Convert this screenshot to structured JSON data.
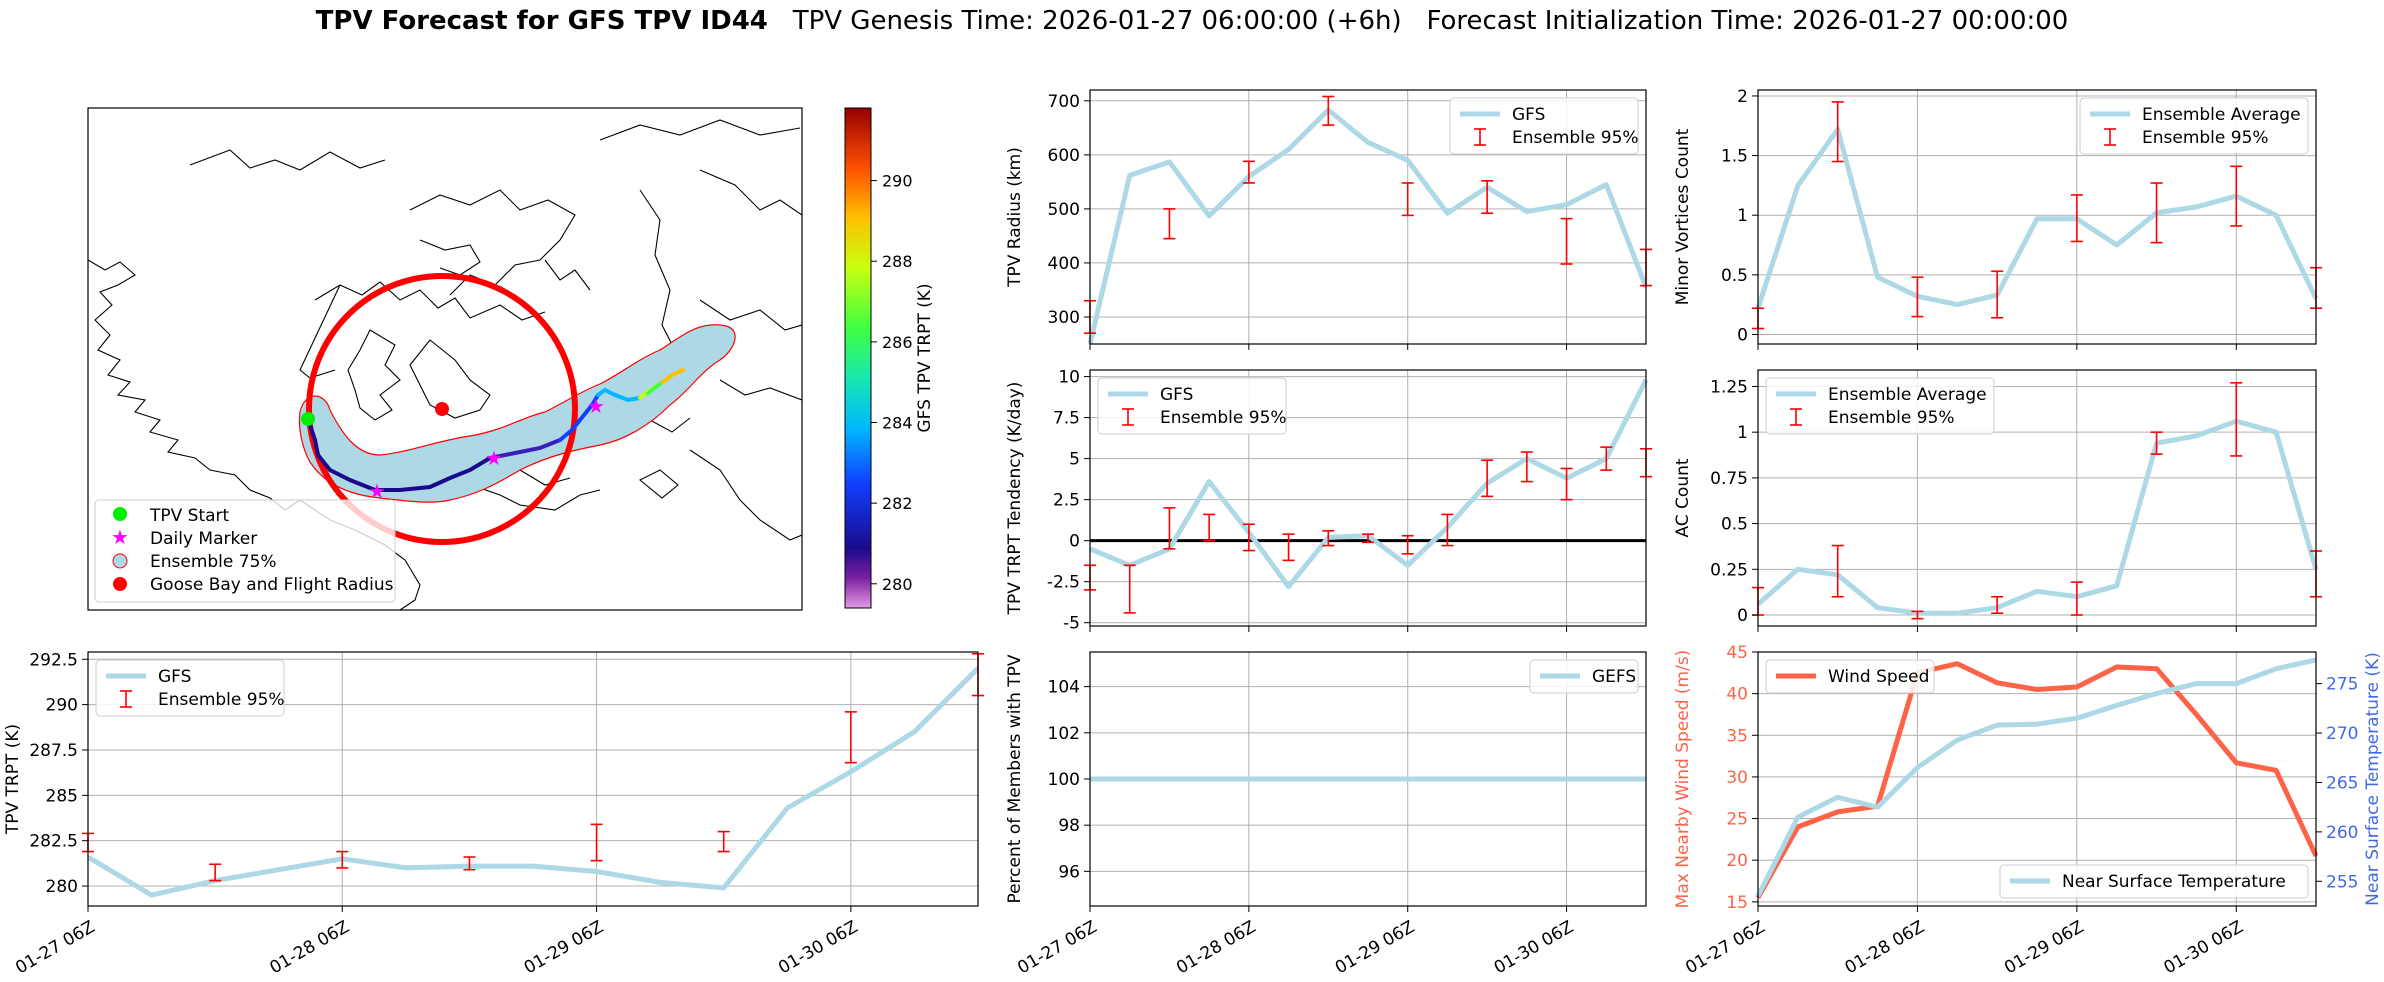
{
  "header": {
    "title_bold": "TPV Forecast for GFS TPV ID44",
    "title_genesis": "TPV Genesis Time: 2026-01-27 06:00:00 (+6h)",
    "title_init": "Forecast Initialization Time: 2026-01-27 00:00:00"
  },
  "colors": {
    "ensemble_line": "#add8e6",
    "errorbar": "#ff0000",
    "wind": "#ff6347",
    "temp_axis": "#4169e1",
    "radius_circle": "#ff0000"
  },
  "time_ticks": [
    "01-27 06Z",
    "01-28 06Z",
    "01-29 06Z",
    "01-30 06Z"
  ],
  "map": {
    "legend": [
      "TPV Start",
      "Daily Marker",
      "Ensemble 75%",
      "Goose Bay and Flight Radius"
    ],
    "colorbar_label": "GFS TPV TRPT (K)",
    "colorbar_ticks": [
      "280",
      "282",
      "284",
      "286",
      "288",
      "290"
    ],
    "colorbar_range": [
      279.4,
      291.8
    ]
  },
  "chart_data": [
    {
      "id": "radius",
      "type": "line",
      "ylabel": "TPV Radius (km)",
      "ylim": [
        250,
        720
      ],
      "yticks": [
        300,
        400,
        500,
        600,
        700
      ],
      "series": [
        {
          "name": "GFS",
          "values": [
            250,
            562,
            587,
            487,
            560,
            610,
            683,
            623,
            590,
            492,
            540,
            495,
            508,
            545,
            355
          ]
        }
      ],
      "errorbars": {
        "name": "Ensemble 95%",
        "items": [
          {
            "x": 0,
            "lo": 270,
            "hi": 330
          },
          {
            "x": 2,
            "lo": 445,
            "hi": 500
          },
          {
            "x": 4,
            "lo": 548,
            "hi": 588
          },
          {
            "x": 6,
            "lo": 655,
            "hi": 708
          },
          {
            "x": 8,
            "lo": 488,
            "hi": 548
          },
          {
            "x": 10,
            "lo": 492,
            "hi": 552
          },
          {
            "x": 12,
            "lo": 398,
            "hi": 482
          },
          {
            "x": 14,
            "lo": 358,
            "hi": 425
          }
        ]
      }
    },
    {
      "id": "tendency",
      "type": "line",
      "ylabel": "TPV TRPT Tendency (K/day)",
      "ylim": [
        -5.2,
        10.4
      ],
      "yticks": [
        -5.0,
        -2.5,
        0.0,
        2.5,
        5.0,
        7.5,
        10.0
      ],
      "hline": 0,
      "series": [
        {
          "name": "GFS",
          "values": [
            -0.5,
            -1.5,
            -0.5,
            3.6,
            0.5,
            -2.8,
            0.2,
            0.3,
            -1.5,
            0.8,
            3.5,
            5.0,
            3.8,
            5.0,
            9.8
          ]
        }
      ],
      "errorbars": {
        "name": "Ensemble 95%",
        "items": [
          {
            "x": 0,
            "lo": -3.0,
            "hi": -1.5
          },
          {
            "x": 1,
            "lo": -4.4,
            "hi": -1.5
          },
          {
            "x": 2,
            "lo": -0.5,
            "hi": 2.0
          },
          {
            "x": 3,
            "lo": 0.0,
            "hi": 1.6
          },
          {
            "x": 4,
            "lo": -0.6,
            "hi": 1.0
          },
          {
            "x": 5,
            "lo": -1.2,
            "hi": 0.4
          },
          {
            "x": 6,
            "lo": -0.3,
            "hi": 0.6
          },
          {
            "x": 7,
            "lo": -0.1,
            "hi": 0.4
          },
          {
            "x": 8,
            "lo": -0.8,
            "hi": 0.3
          },
          {
            "x": 9,
            "lo": -0.3,
            "hi": 1.6
          },
          {
            "x": 10,
            "lo": 2.7,
            "hi": 4.9
          },
          {
            "x": 11,
            "lo": 3.6,
            "hi": 5.4
          },
          {
            "x": 12,
            "lo": 2.5,
            "hi": 4.4
          },
          {
            "x": 13,
            "lo": 4.3,
            "hi": 5.7
          },
          {
            "x": 14,
            "lo": 3.9,
            "hi": 5.6
          }
        ]
      }
    },
    {
      "id": "members",
      "type": "line",
      "ylabel": "Percent of Members with TPV",
      "ylim": [
        94.5,
        105.5
      ],
      "yticks": [
        96,
        98,
        100,
        102,
        104
      ],
      "series": [
        {
          "name": "GEFS",
          "values": [
            100,
            100,
            100,
            100,
            100,
            100,
            100,
            100,
            100,
            100,
            100,
            100,
            100,
            100,
            100
          ]
        }
      ]
    },
    {
      "id": "minor",
      "type": "line",
      "ylabel": "Minor Vortices Count",
      "ylim": [
        -0.08,
        2.05
      ],
      "yticks": [
        0.0,
        0.5,
        1.0,
        1.5,
        2.0
      ],
      "series": [
        {
          "name": "Ensemble Average",
          "values": [
            0.22,
            1.25,
            1.72,
            0.48,
            0.32,
            0.25,
            0.33,
            0.97,
            0.97,
            0.75,
            1.02,
            1.07,
            1.16,
            1.0,
            0.3
          ]
        }
      ],
      "errorbars": {
        "name": "Ensemble 95%",
        "items": [
          {
            "x": 0,
            "lo": 0.05,
            "hi": 0.22
          },
          {
            "x": 2,
            "lo": 1.45,
            "hi": 1.95
          },
          {
            "x": 4,
            "lo": 0.15,
            "hi": 0.48
          },
          {
            "x": 6,
            "lo": 0.14,
            "hi": 0.53
          },
          {
            "x": 8,
            "lo": 0.78,
            "hi": 1.17
          },
          {
            "x": 10,
            "lo": 0.77,
            "hi": 1.27
          },
          {
            "x": 12,
            "lo": 0.91,
            "hi": 1.41
          },
          {
            "x": 14,
            "lo": 0.22,
            "hi": 0.56
          }
        ]
      }
    },
    {
      "id": "ac",
      "type": "line",
      "ylabel": "AC Count",
      "ylim": [
        -0.06,
        1.34
      ],
      "yticks": [
        0.0,
        0.25,
        0.5,
        0.75,
        1.0,
        1.25
      ],
      "series": [
        {
          "name": "Ensemble Average",
          "values": [
            0.06,
            0.25,
            0.22,
            0.04,
            0.01,
            0.01,
            0.04,
            0.13,
            0.1,
            0.16,
            0.94,
            0.98,
            1.06,
            1.0,
            0.25
          ]
        }
      ],
      "errorbars": {
        "name": "Ensemble 95%",
        "items": [
          {
            "x": 0,
            "lo": 0.0,
            "hi": 0.15
          },
          {
            "x": 2,
            "lo": 0.1,
            "hi": 0.38
          },
          {
            "x": 4,
            "lo": -0.02,
            "hi": 0.02
          },
          {
            "x": 6,
            "lo": 0.01,
            "hi": 0.1
          },
          {
            "x": 8,
            "lo": 0.0,
            "hi": 0.18
          },
          {
            "x": 10,
            "lo": 0.88,
            "hi": 1.0
          },
          {
            "x": 12,
            "lo": 0.87,
            "hi": 1.27
          },
          {
            "x": 14,
            "lo": 0.1,
            "hi": 0.35
          }
        ]
      }
    },
    {
      "id": "trpt",
      "type": "line",
      "ylabel": "TPV TRPT (K)",
      "ylim": [
        278.9,
        292.9
      ],
      "yticks": [
        280.0,
        282.5,
        285.0,
        287.5,
        290.0,
        292.5
      ],
      "series": [
        {
          "name": "GFS",
          "values": [
            281.6,
            279.5,
            280.3,
            280.9,
            281.5,
            281.0,
            281.1,
            281.1,
            280.8,
            280.2,
            279.9,
            284.3,
            286.3,
            288.5,
            292.0
          ]
        }
      ],
      "errorbars": {
        "name": "Ensemble 95%",
        "items": [
          {
            "x": 0,
            "lo": 281.9,
            "hi": 282.9
          },
          {
            "x": 2,
            "lo": 280.3,
            "hi": 281.2
          },
          {
            "x": 4,
            "lo": 281.0,
            "hi": 281.9
          },
          {
            "x": 6,
            "lo": 280.9,
            "hi": 281.6
          },
          {
            "x": 8,
            "lo": 281.4,
            "hi": 283.4
          },
          {
            "x": 10,
            "lo": 281.9,
            "hi": 283.0
          },
          {
            "x": 12,
            "lo": 286.8,
            "hi": 289.6
          },
          {
            "x": 14,
            "lo": 290.5,
            "hi": 292.8
          }
        ]
      }
    },
    {
      "id": "wind",
      "type": "line",
      "ylabel": "Max Nearby Wind Speed (m/s)",
      "ylabel_right": "Near Surface Temperature (K)",
      "ylim": [
        14.5,
        45
      ],
      "yticks": [
        15,
        20,
        25,
        30,
        35,
        40,
        45
      ],
      "ylim_right": [
        252.5,
        278.2
      ],
      "yticks_right": [
        255,
        260,
        265,
        270,
        275
      ],
      "series": [
        {
          "name": "Wind Speed",
          "axis": "left",
          "values": [
            15.5,
            24.0,
            25.8,
            26.5,
            42.5,
            43.6,
            41.3,
            40.5,
            40.8,
            43.2,
            43.0,
            37.5,
            31.7,
            30.8,
            20.5
          ]
        },
        {
          "name": "Near Surface Temperature",
          "axis": "right",
          "values": [
            253.5,
            261.5,
            263.5,
            262.5,
            266.5,
            269.3,
            270.8,
            270.9,
            271.5,
            272.8,
            274.0,
            275.0,
            275.0,
            276.5,
            277.4
          ]
        }
      ]
    }
  ]
}
